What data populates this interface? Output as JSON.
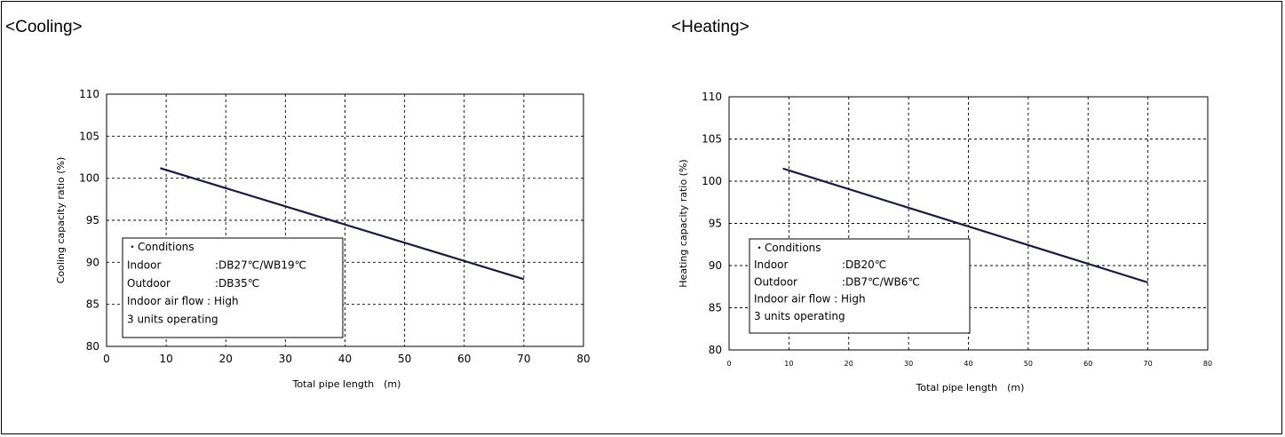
{
  "sections": {
    "cooling_title": "<Cooling>",
    "heating_title": "<Heating>"
  },
  "colors": {
    "series_line": "#1a1a4a",
    "grid": "#000000",
    "background": "#ffffff"
  },
  "chart_data": [
    {
      "id": "cooling",
      "type": "line",
      "title": "",
      "xlabel": "Total pipe length　(m)",
      "ylabel": "Cooling capacity ratio (%)",
      "xlim": [
        0,
        80
      ],
      "ylim": [
        80,
        110
      ],
      "x_ticks": [
        0,
        10,
        20,
        30,
        40,
        50,
        60,
        70,
        80
      ],
      "y_ticks": [
        80,
        85,
        90,
        95,
        100,
        105,
        110
      ],
      "grid": true,
      "series": [
        {
          "x": [
            9,
            70
          ],
          "y": [
            101.2,
            88.0
          ]
        }
      ],
      "conditions": {
        "heading": "・Conditions",
        "indoor_label": "Indoor",
        "indoor_value": ":DB27℃/WB19℃",
        "outdoor_label": "Outdoor",
        "outdoor_value": ":DB35℃",
        "airflow": "Indoor air flow : High",
        "units": "3 units operating"
      }
    },
    {
      "id": "heating",
      "type": "line",
      "title": "",
      "xlabel": "Total pipe length　(m)",
      "ylabel": "Heating capacity ratio (%)",
      "xlim": [
        0,
        80
      ],
      "ylim": [
        80,
        110
      ],
      "x_ticks": [
        0,
        10,
        20,
        30,
        40,
        50,
        60,
        70,
        80
      ],
      "y_ticks": [
        80,
        85,
        90,
        95,
        100,
        105,
        110
      ],
      "grid": true,
      "series": [
        {
          "x": [
            9,
            70
          ],
          "y": [
            101.5,
            88.0
          ]
        }
      ],
      "conditions": {
        "heading": "・Conditions",
        "indoor_label": "Indoor",
        "indoor_value": ":DB20℃",
        "outdoor_label": "Outdoor",
        "outdoor_value": ":DB7℃/WB6℃",
        "airflow": "Indoor air flow : High",
        "units": "3 units operating"
      }
    }
  ]
}
